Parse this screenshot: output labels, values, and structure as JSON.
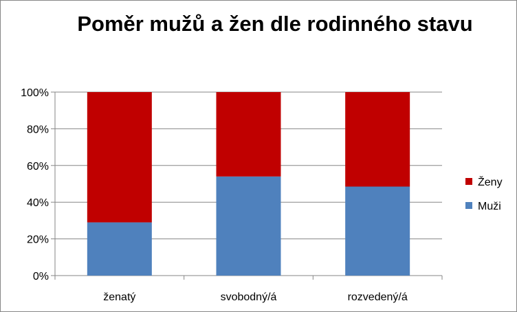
{
  "chart_data": {
    "type": "bar",
    "stacked": true,
    "percent_stacked": true,
    "title": "Poměr mužů a žen dle rodinného stavu",
    "categories": [
      "ženatý",
      "svobodný/á",
      "rozvedený/á"
    ],
    "series": [
      {
        "name": "Muži",
        "values": [
          29,
          54,
          48.5
        ],
        "color": "#4F81BD"
      },
      {
        "name": "Ženy",
        "values": [
          71,
          46,
          51.5
        ],
        "color": "#C00000"
      }
    ],
    "ylim": [
      0,
      100
    ],
    "yticks": [
      "0%",
      "20%",
      "40%",
      "60%",
      "80%",
      "100%"
    ],
    "grid": true,
    "legend": "right",
    "legend_order": [
      "Ženy",
      "Muži"
    ]
  }
}
